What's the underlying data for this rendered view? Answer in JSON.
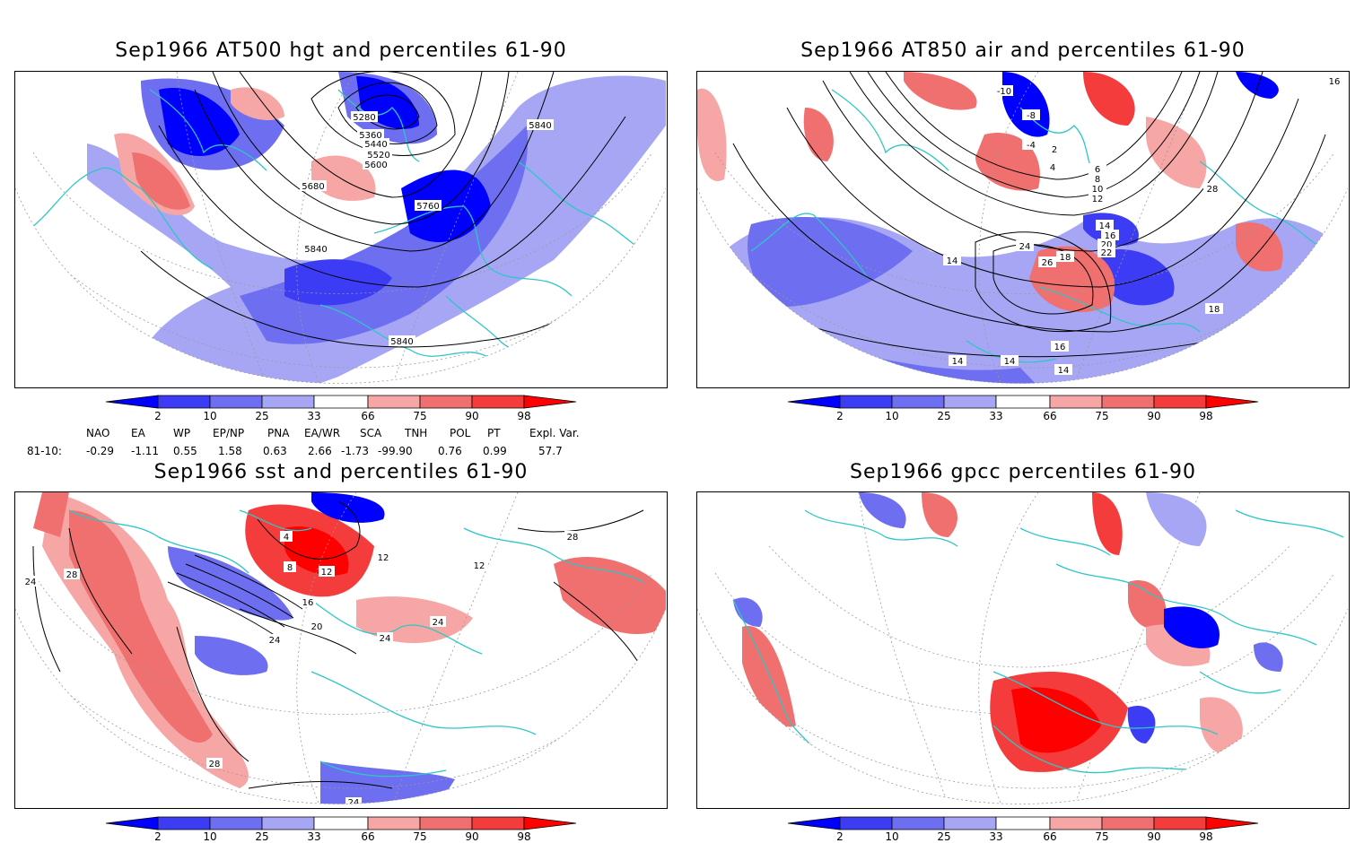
{
  "panels": {
    "tl": {
      "title": "Sep1966 AT500 hgt and percentiles 61-90",
      "contour_labels": [
        "5280",
        "5360",
        "5440",
        "5520",
        "5600",
        "5680",
        "5760",
        "5840",
        "5840",
        "5840"
      ]
    },
    "tr": {
      "title": "Sep1966 AT850 air and percentiles 61-90",
      "contour_labels": [
        "-10",
        "-8",
        "-4",
        "2",
        "4",
        "6",
        "8",
        "10",
        "12",
        "14",
        "16",
        "18",
        "20",
        "22",
        "24",
        "26",
        "28",
        "14",
        "16",
        "18",
        "16",
        "14",
        "14",
        "14"
      ]
    },
    "bl": {
      "title": "Sep1966 sst and percentiles 61-90",
      "contour_labels": [
        "4",
        "8",
        "12",
        "16",
        "20",
        "24",
        "24",
        "24",
        "28",
        "28",
        "24",
        "28",
        "12",
        "12",
        "24"
      ]
    },
    "br": {
      "title": "Sep1966 gpcc percentiles 61-90"
    }
  },
  "colorbar": {
    "labels": [
      "2",
      "10",
      "25",
      "33",
      "66",
      "75",
      "90",
      "98"
    ],
    "colors": {
      "b1": "#0000ff",
      "b2": "#3c3cf5",
      "b3": "#6e6ef0",
      "b4": "#a6a6f5",
      "white": "#ffffff",
      "r1": "#f7a6a6",
      "r2": "#f07070",
      "r3": "#f53c3c",
      "r4": "#ff0000"
    }
  },
  "indices": {
    "headers": [
      "NAO",
      "EA",
      "WP",
      "EP/NP",
      "PNA",
      "EA/WR",
      "SCA",
      "TNH",
      "POL",
      "PT",
      "Expl. Var."
    ],
    "row_label": "81-10:",
    "values": [
      "-0.29",
      "-1.11",
      "0.55",
      "1.58",
      "0.63",
      "2.66",
      "-1.73",
      "-99.90",
      "0.76",
      "0.99",
      "57.7"
    ]
  },
  "colors": {
    "coast": "#2fc6c6",
    "contour": "#000000",
    "grid": "#9a9a9a"
  }
}
